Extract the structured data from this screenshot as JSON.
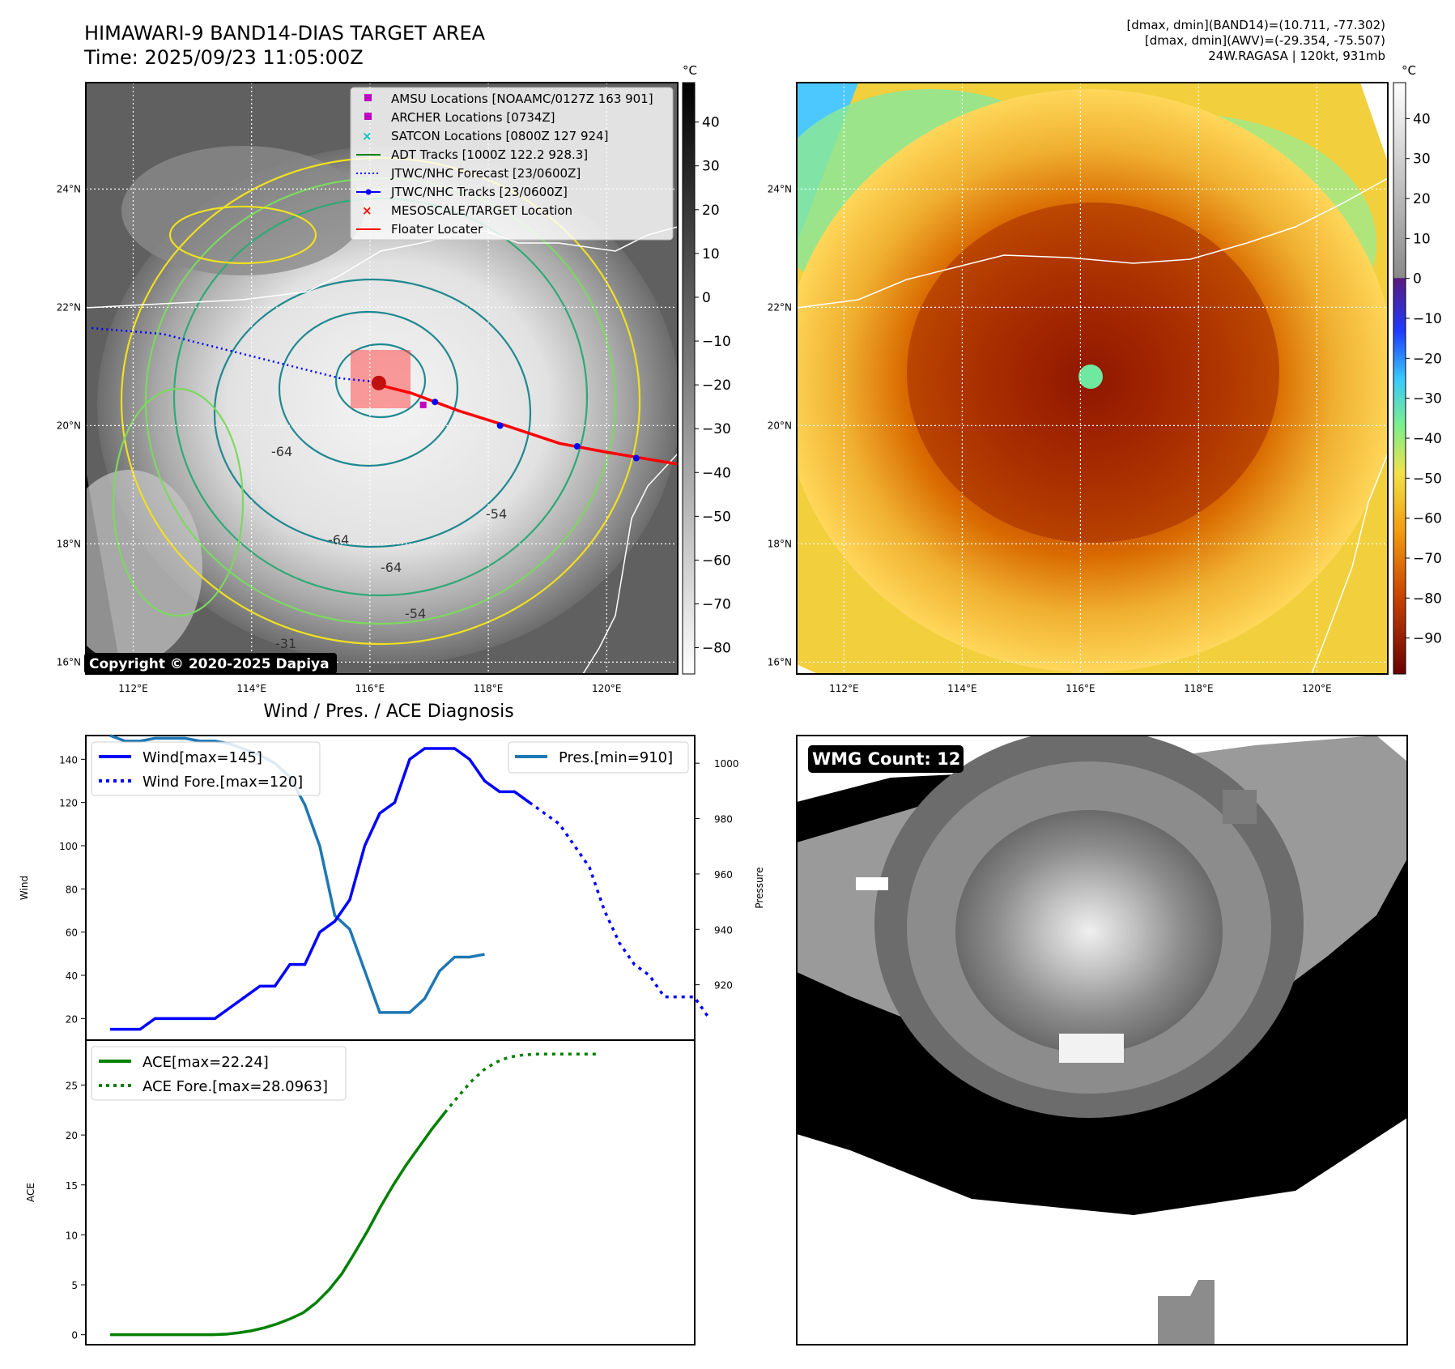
{
  "header": {
    "title_line1": "HIMAWARI-9 BAND14-DIAS TARGET AREA",
    "title_line2": "Time: 2025/09/23 11:05:00Z",
    "stats_line1": "[dmax, dmin](BAND14)=(10.711, -77.302)",
    "stats_line2": "[dmax, dmin](AWV)=(-29.354, -75.507)",
    "stats_line3": "24W.RAGASA | 120kt, 931mb"
  },
  "colors": {
    "wind": "#0000ff",
    "pressure": "#1f77b4",
    "ace": "#008000",
    "track_red": "#ff0000",
    "forecast": "#0000ff"
  },
  "maps": {
    "lon_ticks": [
      "112°E",
      "114°E",
      "116°E",
      "118°E",
      "120°E"
    ],
    "lat_ticks": [
      "16°N",
      "18°N",
      "20°N",
      "22°N",
      "24°N"
    ],
    "lon_range": [
      111.2,
      121.2
    ],
    "lat_range": [
      15.8,
      25.8
    ],
    "copyright": "Copyright © 2020-2025 Dapiya",
    "contour_labels": [
      "-64",
      "-64",
      "-64",
      "-54",
      "-54",
      "-31"
    ],
    "legend": [
      {
        "label": "AMSU Locations [NOAAMC/0127Z 163 901]",
        "marker": "square-magenta"
      },
      {
        "label": "ARCHER Locations [0734Z]",
        "marker": "square-magenta"
      },
      {
        "label": "SATCON Locations [0800Z 127 924]",
        "marker": "x-cyan"
      },
      {
        "label": "ADT Tracks [1000Z 122.2 928.3]",
        "marker": "line-green"
      },
      {
        "label": "JTWC/NHC Forecast [23/0600Z]",
        "marker": "dotted-blue"
      },
      {
        "label": "JTWC/NHC Tracks [23/0600Z]",
        "marker": "line-dot-blue"
      },
      {
        "label": "MESOSCALE/TARGET Location",
        "marker": "x-red"
      },
      {
        "label": "Floater Locater",
        "marker": "line-red"
      }
    ],
    "colorbar_left": {
      "unit": "°C",
      "ticks": [
        "40",
        "30",
        "20",
        "10",
        "0",
        "−10",
        "−20",
        "−30",
        "−40",
        "−50",
        "−60",
        "−70",
        "−80"
      ],
      "range": [
        49,
        -86
      ]
    },
    "colorbar_right": {
      "unit": "°C",
      "ticks": [
        "40",
        "30",
        "20",
        "10",
        "0",
        "−10",
        "−20",
        "−30",
        "−40",
        "−50",
        "−60",
        "−70",
        "−80",
        "−90"
      ],
      "range": [
        49,
        -99
      ]
    }
  },
  "chart_data": [
    {
      "type": "line",
      "title": "Wind / Pres. / ACE Diagnosis",
      "ylabel": "Wind",
      "ylabel_right": "Pressure",
      "ylim": [
        10,
        151
      ],
      "ylim_right": [
        900,
        1010
      ],
      "yticks": [
        "20",
        "40",
        "60",
        "80",
        "100",
        "120",
        "140"
      ],
      "yticks_right": [
        "920",
        "940",
        "960",
        "980",
        "1000"
      ],
      "legend_left": [
        "Wind[max=145]",
        "Wind Fore.[max=120]"
      ],
      "legend_right": [
        "Pres.[min=910]"
      ],
      "series": [
        {
          "name": "Wind[max=145]",
          "values": [
            15,
            15,
            15,
            20,
            20,
            20,
            20,
            20,
            25,
            30,
            35,
            35,
            45,
            45,
            60,
            65,
            75,
            100,
            115,
            120,
            140,
            145,
            145,
            145,
            140,
            130,
            125,
            125,
            120
          ]
        },
        {
          "name": "Wind Fore.[max=120]",
          "values": [
            120,
            115,
            110,
            100,
            90,
            70,
            55,
            45,
            40,
            30,
            30,
            30,
            20
          ]
        },
        {
          "name": "Pres.[min=910]",
          "values": [
            1010,
            1008,
            1008,
            1009,
            1009,
            1009,
            1008,
            1008,
            1007,
            1005,
            1003,
            1000,
            995,
            985,
            970,
            945,
            940,
            925,
            910,
            910,
            910,
            915,
            925,
            930,
            930,
            931
          ]
        }
      ]
    },
    {
      "type": "line",
      "ylabel": "ACE",
      "ylim": [
        -1,
        29.5
      ],
      "yticks": [
        "0",
        "5",
        "10",
        "15",
        "20",
        "25"
      ],
      "legend": [
        "ACE[max=22.24]",
        "ACE Fore.[max=28.0963]"
      ],
      "series": [
        {
          "name": "ACE[max=22.24]",
          "values": [
            0,
            0,
            0,
            0,
            0,
            0,
            0,
            0,
            0,
            0.05,
            0.2,
            0.4,
            0.7,
            1.1,
            1.6,
            2.2,
            3.2,
            4.5,
            6.1,
            8.2,
            10.4,
            12.8,
            15.0,
            17.0,
            18.8,
            20.6,
            22.24
          ]
        },
        {
          "name": "ACE Fore.[max=28.0963]",
          "values": [
            22.24,
            23.8,
            25.3,
            26.5,
            27.3,
            27.8,
            28.0,
            28.0963,
            28.0963,
            28.0963,
            28.0963,
            28.0963,
            28.0963
          ]
        }
      ]
    }
  ],
  "wmg": {
    "label": "WMG Count: 12"
  }
}
